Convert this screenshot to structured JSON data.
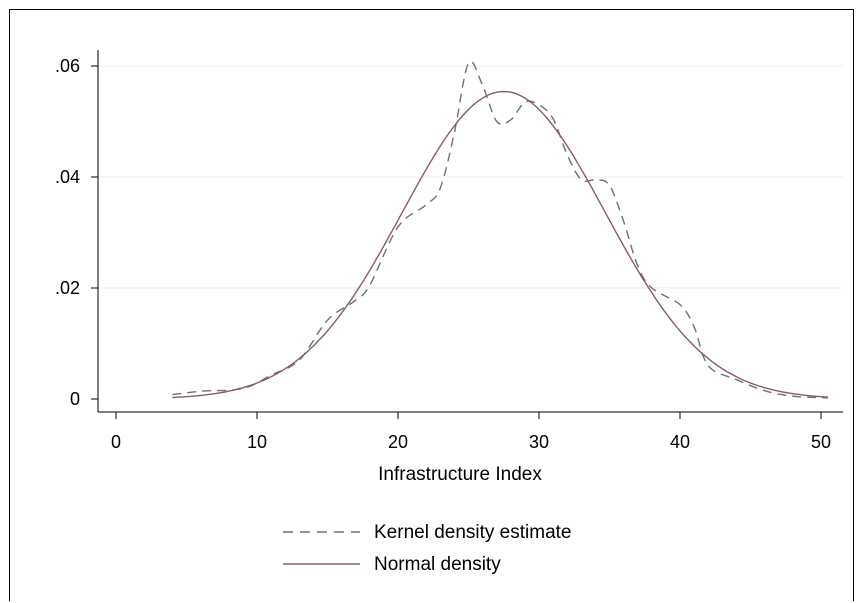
{
  "chart_data": {
    "type": "line",
    "title": "",
    "xlabel": "Infrastructure Index",
    "ylabel": "",
    "xlim": [
      0,
      51
    ],
    "ylim": [
      0,
      0.06
    ],
    "x_ticks": [
      0,
      10,
      20,
      30,
      40,
      50
    ],
    "x_tick_labels": [
      "0",
      "10",
      "20",
      "30",
      "40",
      "50"
    ],
    "y_ticks": [
      0,
      0.02,
      0.04,
      0.06
    ],
    "y_tick_labels": [
      "0",
      ".02",
      ".04",
      ".06"
    ],
    "grid": "horizontal",
    "legend_position": "bottom",
    "series": [
      {
        "name": "Kernel density estimate",
        "style": "dashed",
        "color": "#6e7078",
        "x": [
          4,
          6,
          9,
          11,
          13,
          15,
          17,
          18,
          20,
          22,
          23,
          24,
          25,
          26,
          27,
          28,
          29,
          30,
          31,
          32,
          33,
          34,
          35,
          36,
          37,
          38,
          40,
          41,
          42,
          44,
          46,
          48,
          50.5
        ],
        "y": [
          0.0008,
          0.0014,
          0.0019,
          0.0043,
          0.007,
          0.0142,
          0.0178,
          0.0205,
          0.031,
          0.035,
          0.038,
          0.048,
          0.0605,
          0.0565,
          0.05,
          0.0503,
          0.0535,
          0.053,
          0.0505,
          0.044,
          0.0395,
          0.0395,
          0.0385,
          0.032,
          0.024,
          0.02,
          0.017,
          0.013,
          0.006,
          0.0035,
          0.0015,
          0.0005,
          0.0002
        ]
      },
      {
        "name": "Normal density",
        "style": "solid",
        "color": "#8a5a6a",
        "mean": 27.5,
        "sd": 7.2,
        "x_range": [
          4,
          50.5
        ]
      }
    ]
  }
}
